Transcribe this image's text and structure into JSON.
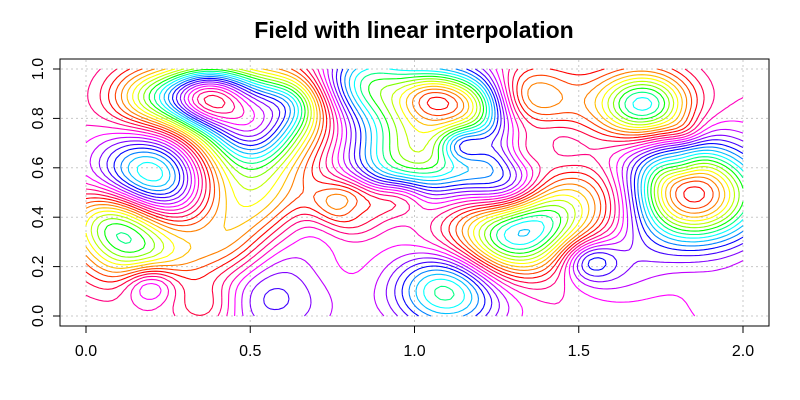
{
  "chart_data": {
    "type": "contour",
    "title": "Field with linear interpolation",
    "xlabel": "",
    "ylabel": "",
    "xlim": [
      0,
      2
    ],
    "ylim": [
      0,
      1
    ],
    "x_ticks": [
      0.0,
      0.5,
      1.0,
      1.5,
      2.0
    ],
    "x_tick_labels": [
      "0.0",
      "0.5",
      "1.0",
      "1.5",
      "2.0"
    ],
    "y_ticks": [
      0.0,
      0.2,
      0.4,
      0.6,
      0.8,
      1.0
    ],
    "y_tick_labels": [
      "0.0",
      "0.2",
      "0.4",
      "0.6",
      "0.8",
      "1.0"
    ],
    "grid": true,
    "colormap": "rainbow",
    "contour_colors": [
      "#ff0000",
      "#ff4000",
      "#ff8000",
      "#ffbf00",
      "#ffff00",
      "#bfff00",
      "#80ff00",
      "#00ff00",
      "#00ff80",
      "#00ffff",
      "#00bfff",
      "#0080ff",
      "#0000ff",
      "#4000ff",
      "#8000ff",
      "#bf00ff",
      "#ff00ff",
      "#ff00bf",
      "#ff0080",
      "#ff0040"
    ]
  }
}
